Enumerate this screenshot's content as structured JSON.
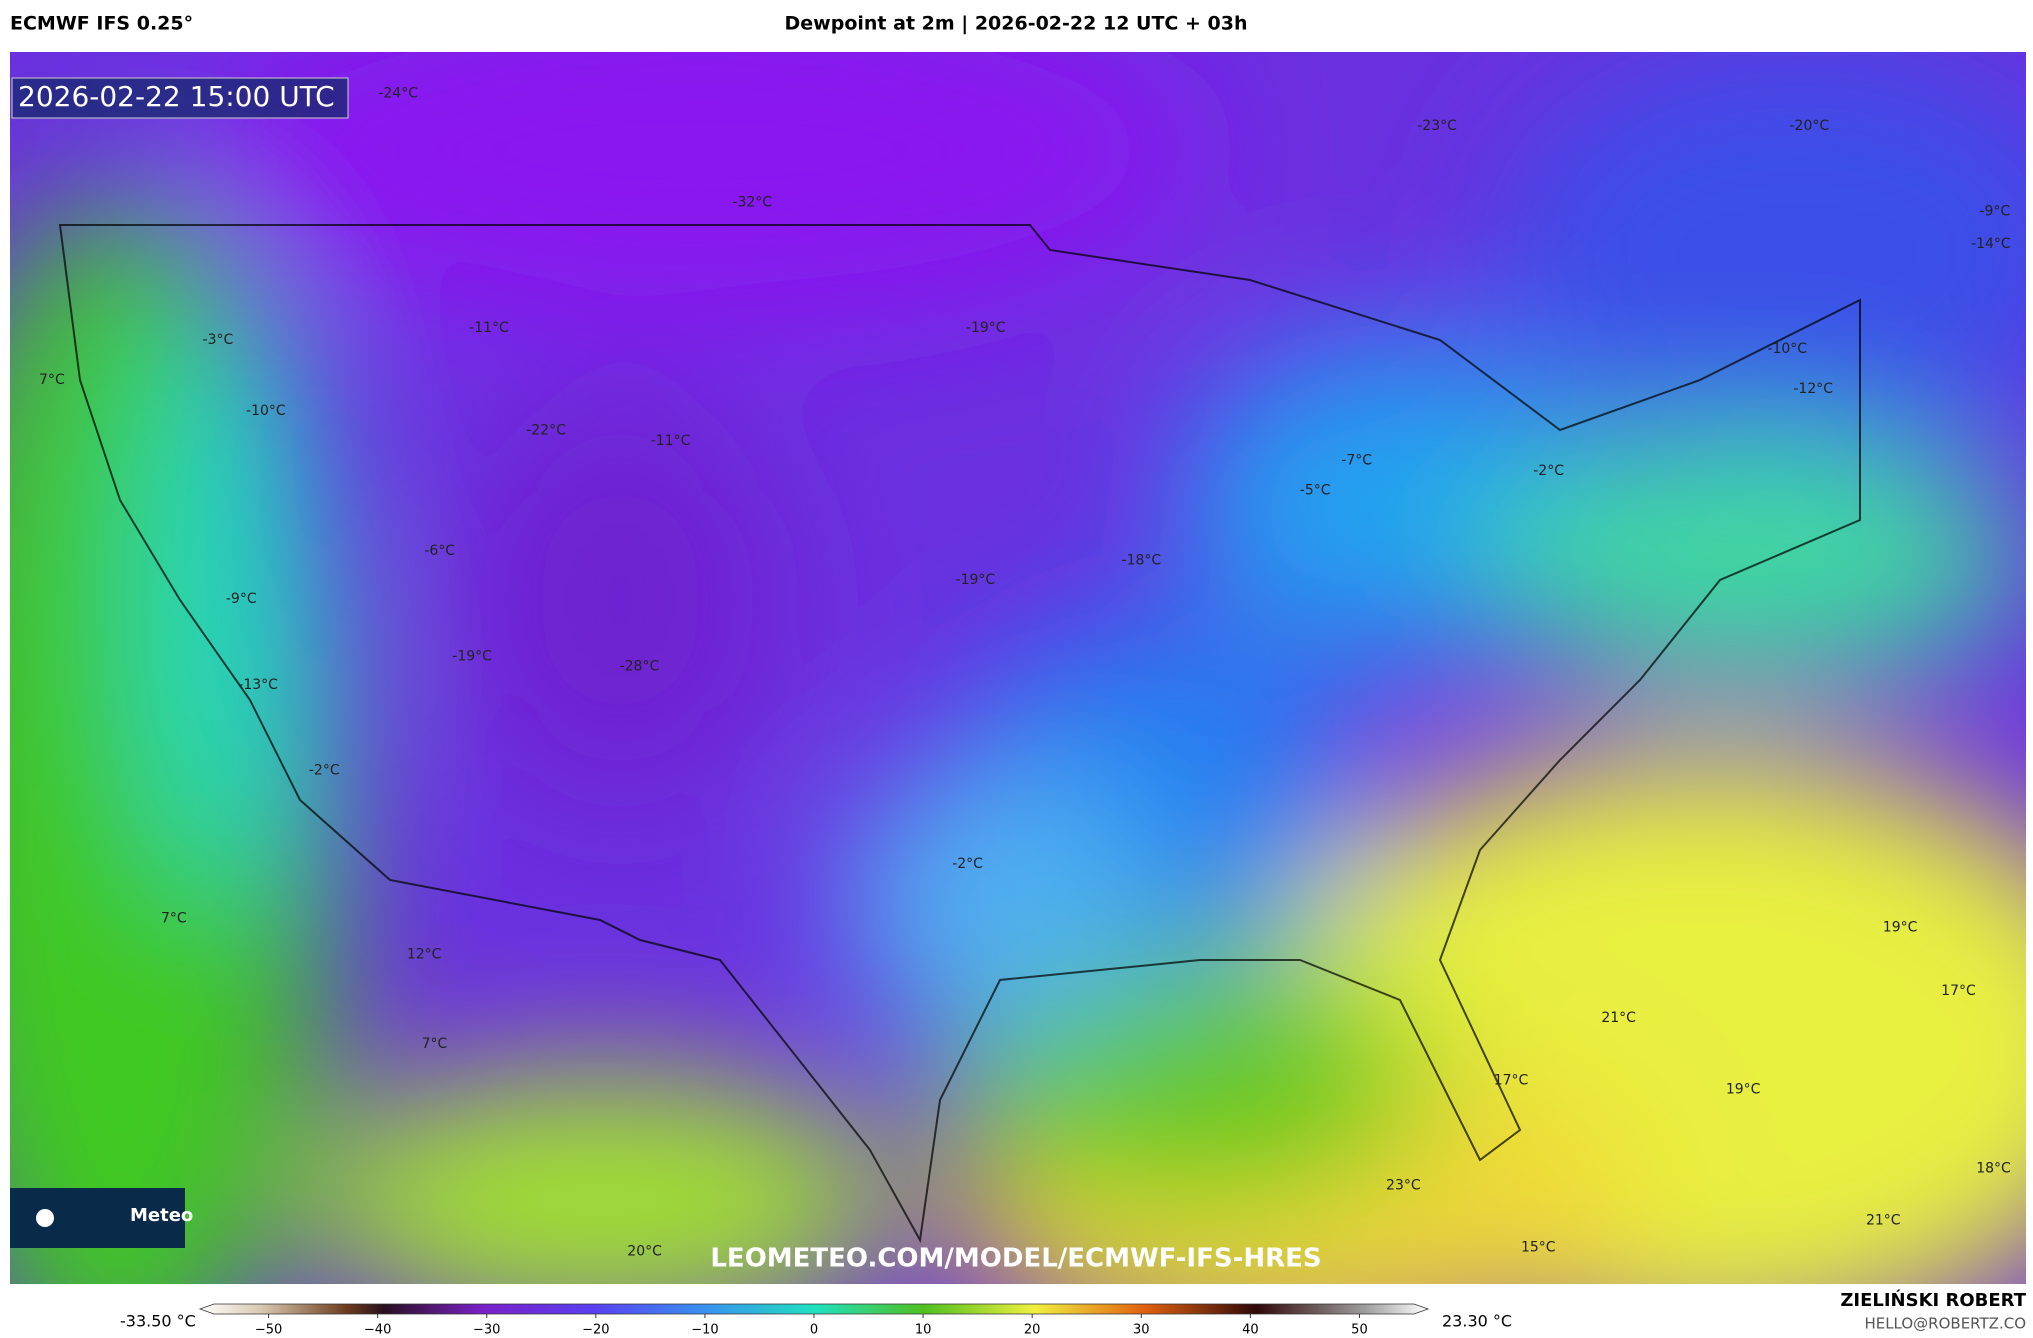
{
  "header": {
    "left": "ECMWF IFS 0.25°",
    "center": "Dewpoint at 2m | 2026-02-22 12 UTC + 03h"
  },
  "timestamp": "2026-02-22 15:00 UTC",
  "logo": "Meteo",
  "watermark": "LEOMETEO.COM/MODEL/ECMWF-IFS-HRES",
  "credit": {
    "name": "ZIELIŃSKI ROBERT",
    "email": "HELLO@ROBERTZ.CO"
  },
  "map": {
    "labels": [
      "-24°C",
      "-32°C",
      "-23°C",
      "-20°C",
      "-9°C",
      "-14°C",
      "-11°C",
      "-19°C",
      "-3°C",
      "-10°C",
      "-12°C",
      "7°C",
      "-10°C",
      "-22°C",
      "-11°C",
      "-7°C",
      "-5°C",
      "-2°C",
      "-6°C",
      "-18°C",
      "-19°C",
      "-9°C",
      "-19°C",
      "-28°C",
      "-13°C",
      "-2°C",
      "-2°C",
      "7°C",
      "12°C",
      "19°C",
      "17°C",
      "21°C",
      "7°C",
      "17°C",
      "19°C",
      "18°C",
      "23°C",
      "21°C",
      "20°C",
      "15°C"
    ]
  },
  "colorbar": {
    "min_label": "-33.50 °C",
    "max_label": "23.30 °C",
    "lim": [
      -55,
      55
    ],
    "ticks": [
      {
        "value": -50,
        "label": "−50"
      },
      {
        "value": -40,
        "label": "−40"
      },
      {
        "value": -30,
        "label": "−30"
      },
      {
        "value": -20,
        "label": "−20"
      },
      {
        "value": -10,
        "label": "−10"
      },
      0,
      10,
      20,
      30,
      40,
      50
    ]
  }
}
